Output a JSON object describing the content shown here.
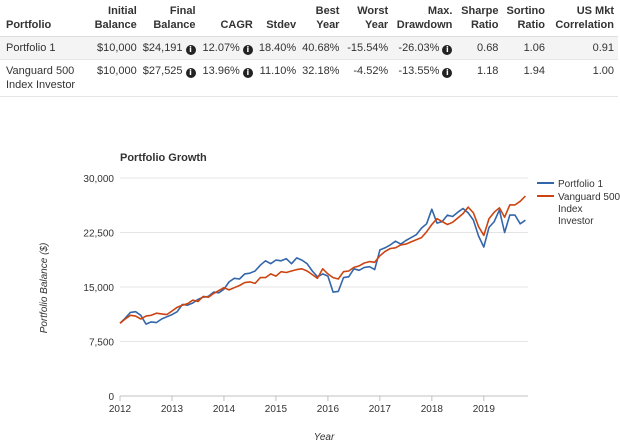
{
  "table": {
    "headers": [
      "Portfolio",
      "Initial Balance",
      "Final Balance",
      "CAGR",
      "Stdev",
      "Best Year",
      "Worst Year",
      "Max. Drawdown",
      "Sharpe Ratio",
      "Sortino Ratio",
      "US Mkt Correlation"
    ],
    "info_icon": "info-icon",
    "rows": [
      {
        "portfolio": "Portfolio 1",
        "initial": "$10,000",
        "final": "$24,191",
        "cagr": "12.07%",
        "stdev": "18.40%",
        "best": "40.68%",
        "worst": "-15.54%",
        "drawdown": "-26.03%",
        "sharpe": "0.68",
        "sortino": "1.06",
        "correlation": "0.91"
      },
      {
        "portfolio": "Vanguard 500 Index Investor",
        "initial": "$10,000",
        "final": "$27,525",
        "cagr": "13.96%",
        "stdev": "11.10%",
        "best": "32.18%",
        "worst": "-4.52%",
        "drawdown": "-13.55%",
        "sharpe": "1.18",
        "sortino": "1.94",
        "correlation": "1.00"
      }
    ]
  },
  "chart_data": {
    "type": "line",
    "title": "Portfolio Growth",
    "xlabel": "Year",
    "ylabel": "Portfolio Balance ($)",
    "xlim": [
      2012,
      2019.85
    ],
    "ylim": [
      0,
      30000
    ],
    "x_ticks": [
      2012,
      2013,
      2014,
      2015,
      2016,
      2017,
      2018,
      2019
    ],
    "y_ticks": [
      0,
      7500,
      15000,
      22500,
      30000
    ],
    "y_tick_labels": [
      "0",
      "7,500",
      "15,000",
      "22,500",
      "30,000"
    ],
    "grid": true,
    "legend_position": "top-right",
    "series": [
      {
        "name": "Portfolio 1",
        "color": "#3366aa",
        "points": [
          [
            2012.0,
            10000
          ],
          [
            2012.1,
            10700
          ],
          [
            2012.2,
            11500
          ],
          [
            2012.3,
            11600
          ],
          [
            2012.4,
            11100
          ],
          [
            2012.5,
            9900
          ],
          [
            2012.6,
            10200
          ],
          [
            2012.7,
            10100
          ],
          [
            2012.8,
            10600
          ],
          [
            2012.9,
            10900
          ],
          [
            2013.0,
            11200
          ],
          [
            2013.1,
            11600
          ],
          [
            2013.2,
            12600
          ],
          [
            2013.3,
            12500
          ],
          [
            2013.4,
            12800
          ],
          [
            2013.5,
            13300
          ],
          [
            2013.6,
            13600
          ],
          [
            2013.7,
            13700
          ],
          [
            2013.8,
            14300
          ],
          [
            2013.9,
            14200
          ],
          [
            2014.0,
            14700
          ],
          [
            2014.1,
            15700
          ],
          [
            2014.2,
            16200
          ],
          [
            2014.3,
            16100
          ],
          [
            2014.4,
            16800
          ],
          [
            2014.5,
            16900
          ],
          [
            2014.6,
            17200
          ],
          [
            2014.7,
            18000
          ],
          [
            2014.8,
            18600
          ],
          [
            2014.9,
            18200
          ],
          [
            2015.0,
            18700
          ],
          [
            2015.1,
            18600
          ],
          [
            2015.2,
            18900
          ],
          [
            2015.3,
            18200
          ],
          [
            2015.4,
            19000
          ],
          [
            2015.5,
            18700
          ],
          [
            2015.6,
            18200
          ],
          [
            2015.7,
            17200
          ],
          [
            2015.8,
            16400
          ],
          [
            2015.9,
            16800
          ],
          [
            2016.0,
            16500
          ],
          [
            2016.1,
            14300
          ],
          [
            2016.2,
            14400
          ],
          [
            2016.3,
            16300
          ],
          [
            2016.4,
            16400
          ],
          [
            2016.5,
            17500
          ],
          [
            2016.6,
            17300
          ],
          [
            2016.7,
            17700
          ],
          [
            2016.8,
            17800
          ],
          [
            2016.9,
            17400
          ],
          [
            2017.0,
            20100
          ],
          [
            2017.1,
            20400
          ],
          [
            2017.2,
            20800
          ],
          [
            2017.3,
            21300
          ],
          [
            2017.4,
            20900
          ],
          [
            2017.5,
            21400
          ],
          [
            2017.6,
            21800
          ],
          [
            2017.7,
            22200
          ],
          [
            2017.8,
            23100
          ],
          [
            2017.9,
            23700
          ],
          [
            2018.0,
            25700
          ],
          [
            2018.1,
            23800
          ],
          [
            2018.2,
            24000
          ],
          [
            2018.3,
            24900
          ],
          [
            2018.4,
            24700
          ],
          [
            2018.5,
            25300
          ],
          [
            2018.6,
            25800
          ],
          [
            2018.7,
            25200
          ],
          [
            2018.8,
            24200
          ],
          [
            2018.9,
            22000
          ],
          [
            2019.0,
            20500
          ],
          [
            2019.1,
            23200
          ],
          [
            2019.2,
            24000
          ],
          [
            2019.3,
            25600
          ],
          [
            2019.4,
            22500
          ],
          [
            2019.5,
            24900
          ],
          [
            2019.6,
            24900
          ],
          [
            2019.7,
            23700
          ],
          [
            2019.8,
            24191
          ]
        ]
      },
      {
        "name": "Vanguard 500 Index Investor",
        "color": "#cc4411",
        "points": [
          [
            2012.0,
            10000
          ],
          [
            2012.1,
            10600
          ],
          [
            2012.2,
            11100
          ],
          [
            2012.3,
            11000
          ],
          [
            2012.4,
            10600
          ],
          [
            2012.5,
            11000
          ],
          [
            2012.6,
            11100
          ],
          [
            2012.7,
            11400
          ],
          [
            2012.8,
            11300
          ],
          [
            2012.9,
            11200
          ],
          [
            2013.0,
            11700
          ],
          [
            2013.1,
            12200
          ],
          [
            2013.2,
            12500
          ],
          [
            2013.3,
            12700
          ],
          [
            2013.4,
            13200
          ],
          [
            2013.5,
            13000
          ],
          [
            2013.6,
            13700
          ],
          [
            2013.7,
            13600
          ],
          [
            2013.8,
            14100
          ],
          [
            2013.9,
            14500
          ],
          [
            2014.0,
            14900
          ],
          [
            2014.1,
            14600
          ],
          [
            2014.2,
            14900
          ],
          [
            2014.3,
            15200
          ],
          [
            2014.4,
            15600
          ],
          [
            2014.5,
            15700
          ],
          [
            2014.6,
            15500
          ],
          [
            2014.7,
            16300
          ],
          [
            2014.8,
            16300
          ],
          [
            2014.9,
            16800
          ],
          [
            2015.0,
            16500
          ],
          [
            2015.1,
            17100
          ],
          [
            2015.2,
            17000
          ],
          [
            2015.3,
            17200
          ],
          [
            2015.4,
            17400
          ],
          [
            2015.5,
            17500
          ],
          [
            2015.6,
            17200
          ],
          [
            2015.7,
            16700
          ],
          [
            2015.8,
            16200
          ],
          [
            2015.9,
            17500
          ],
          [
            2016.0,
            16800
          ],
          [
            2016.1,
            16300
          ],
          [
            2016.2,
            16100
          ],
          [
            2016.3,
            17100
          ],
          [
            2016.4,
            17200
          ],
          [
            2016.5,
            17700
          ],
          [
            2016.6,
            17900
          ],
          [
            2016.7,
            18300
          ],
          [
            2016.8,
            18500
          ],
          [
            2016.9,
            18400
          ],
          [
            2017.0,
            19300
          ],
          [
            2017.1,
            19900
          ],
          [
            2017.2,
            20300
          ],
          [
            2017.3,
            20400
          ],
          [
            2017.4,
            20800
          ],
          [
            2017.5,
            20900
          ],
          [
            2017.6,
            21200
          ],
          [
            2017.7,
            21500
          ],
          [
            2017.8,
            21800
          ],
          [
            2017.9,
            22600
          ],
          [
            2018.0,
            23600
          ],
          [
            2018.1,
            24400
          ],
          [
            2018.2,
            24000
          ],
          [
            2018.3,
            23600
          ],
          [
            2018.4,
            23900
          ],
          [
            2018.5,
            24500
          ],
          [
            2018.6,
            25100
          ],
          [
            2018.7,
            26000
          ],
          [
            2018.8,
            25200
          ],
          [
            2018.9,
            23300
          ],
          [
            2019.0,
            22100
          ],
          [
            2019.1,
            24400
          ],
          [
            2019.2,
            25300
          ],
          [
            2019.3,
            25900
          ],
          [
            2019.4,
            24600
          ],
          [
            2019.5,
            26300
          ],
          [
            2019.6,
            26300
          ],
          [
            2019.7,
            26800
          ],
          [
            2019.8,
            27525
          ]
        ]
      }
    ]
  }
}
